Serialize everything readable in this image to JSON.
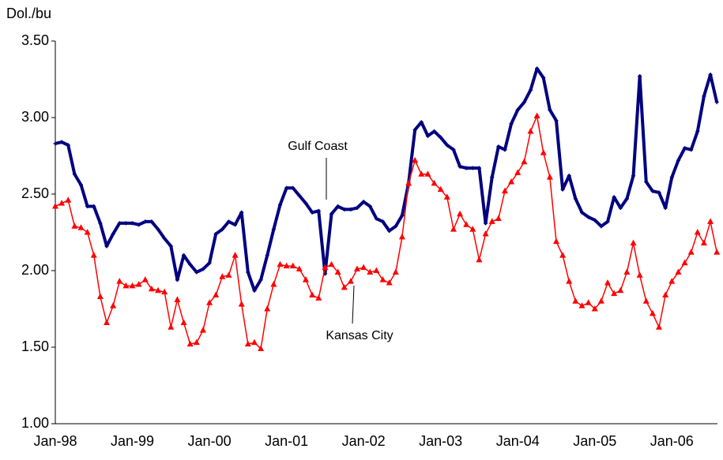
{
  "chart_data": {
    "type": "line",
    "ylabel": "Dol./bu",
    "categories": [
      "Jan-98",
      null,
      null,
      null,
      null,
      null,
      null,
      null,
      null,
      null,
      null,
      null,
      "Jan-99",
      null,
      null,
      null,
      null,
      null,
      null,
      null,
      null,
      null,
      null,
      null,
      "Jan-00",
      null,
      null,
      null,
      null,
      null,
      null,
      null,
      null,
      null,
      null,
      null,
      "Jan-01",
      null,
      null,
      null,
      null,
      null,
      null,
      null,
      null,
      null,
      null,
      null,
      "Jan-02",
      null,
      null,
      null,
      null,
      null,
      null,
      null,
      null,
      null,
      null,
      null,
      "Jan-03",
      null,
      null,
      null,
      null,
      null,
      null,
      null,
      null,
      null,
      null,
      null,
      "Jan-04",
      null,
      null,
      null,
      null,
      null,
      null,
      null,
      null,
      null,
      null,
      null,
      "Jan-05",
      null,
      null,
      null,
      null,
      null,
      null,
      null,
      null,
      null,
      null,
      null,
      "Jan-06",
      null,
      null,
      null,
      null,
      null,
      null,
      null
    ],
    "series": [
      {
        "name": "Gulf Coast",
        "color": "#000080",
        "values": [
          2.83,
          2.84,
          2.82,
          2.63,
          2.56,
          2.42,
          2.42,
          2.31,
          2.16,
          2.24,
          2.31,
          2.31,
          2.31,
          2.3,
          2.32,
          2.32,
          2.27,
          2.21,
          2.16,
          1.94,
          2.1,
          2.04,
          1.99,
          2.01,
          2.05,
          2.24,
          2.27,
          2.32,
          2.3,
          2.38,
          1.99,
          1.87,
          1.94,
          2.1,
          2.27,
          2.43,
          2.54,
          2.54,
          2.49,
          2.44,
          2.38,
          2.39,
          1.98,
          2.37,
          2.42,
          2.4,
          2.4,
          2.41,
          2.45,
          2.42,
          2.34,
          2.32,
          2.26,
          2.29,
          2.36,
          2.57,
          2.92,
          2.97,
          2.88,
          2.91,
          2.87,
          2.82,
          2.79,
          2.68,
          2.67,
          2.67,
          2.67,
          2.31,
          2.61,
          2.81,
          2.79,
          2.96,
          3.05,
          3.1,
          3.18,
          3.32,
          3.26,
          3.05,
          2.98,
          2.53,
          2.62,
          2.47,
          2.38,
          2.35,
          2.33,
          2.29,
          2.32,
          2.48,
          2.41,
          2.47,
          2.62,
          3.27,
          2.58,
          2.52,
          2.51,
          2.41,
          2.61,
          2.72,
          2.8,
          2.79,
          2.91,
          3.14,
          3.28,
          3.1
        ]
      },
      {
        "name": "Kansas City",
        "color": "#ff0000",
        "values": [
          2.42,
          2.44,
          2.46,
          2.29,
          2.28,
          2.25,
          2.1,
          1.83,
          1.66,
          1.77,
          1.93,
          1.9,
          1.9,
          1.91,
          1.94,
          1.88,
          1.87,
          1.86,
          1.63,
          1.81,
          1.66,
          1.52,
          1.53,
          1.61,
          1.79,
          1.84,
          1.96,
          1.97,
          2.1,
          1.78,
          1.52,
          1.53,
          1.49,
          1.75,
          1.91,
          2.04,
          2.03,
          2.03,
          2.01,
          1.94,
          1.84,
          1.82,
          2.02,
          2.04,
          1.99,
          1.89,
          1.93,
          2.01,
          2.02,
          1.99,
          2.0,
          1.94,
          1.92,
          1.99,
          2.22,
          2.57,
          2.72,
          2.63,
          2.63,
          2.57,
          2.53,
          2.48,
          2.27,
          2.37,
          2.3,
          2.27,
          2.07,
          2.24,
          2.32,
          2.34,
          2.52,
          2.58,
          2.64,
          2.71,
          2.91,
          3.01,
          2.77,
          2.61,
          2.19,
          2.1,
          1.93,
          1.8,
          1.77,
          1.79,
          1.75,
          1.8,
          1.92,
          1.85,
          1.87,
          1.99,
          2.18,
          1.97,
          1.8,
          1.72,
          1.63,
          1.84,
          1.93,
          1.99,
          2.05,
          2.12,
          2.25,
          2.18,
          2.32,
          2.12
        ]
      }
    ],
    "ylim": [
      1,
      3.5
    ],
    "yticks": [
      {
        "value": 1,
        "label": "1.00"
      },
      {
        "value": 1.5,
        "label": "1.50"
      },
      {
        "value": 2,
        "label": "2.00"
      },
      {
        "value": 2.5,
        "label": "2.50"
      },
      {
        "value": 3,
        "label": "3.00"
      },
      {
        "value": 3.5,
        "label": "3.50"
      }
    ],
    "grid": false
  }
}
